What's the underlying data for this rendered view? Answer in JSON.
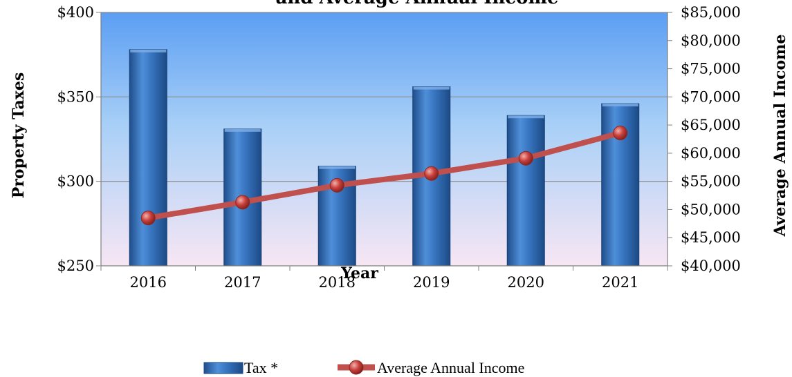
{
  "chart_data": {
    "type": "bar",
    "title": "and Average Annual Income",
    "xlabel": "Year",
    "ylabel": "Property Taxes",
    "ylabel_right": "Average Annual Income",
    "categories": [
      "2016",
      "2017",
      "2018",
      "2019",
      "2020",
      "2021"
    ],
    "ylim": [
      250,
      400
    ],
    "ylim_right": [
      40000,
      85000
    ],
    "yticks": [
      "$250",
      "$300",
      "$350",
      "$400"
    ],
    "yticks_right": [
      "$40,000",
      "$45,000",
      "$50,000",
      "$55,000",
      "$60,000",
      "$65,000",
      "$70,000",
      "$75,000",
      "$80,000",
      "$85,000"
    ],
    "grid": true,
    "legend_position": "bottom",
    "series": [
      {
        "name": "Tax *",
        "type": "bar",
        "axis": "left",
        "color": "#3b78c2",
        "values": [
          378,
          331,
          309,
          356,
          339,
          346
        ]
      },
      {
        "name": "Average Annual Income",
        "type": "line",
        "axis": "right",
        "color": "#c0504d",
        "values": [
          48500,
          51300,
          54300,
          56400,
          59100,
          63600
        ]
      }
    ]
  }
}
